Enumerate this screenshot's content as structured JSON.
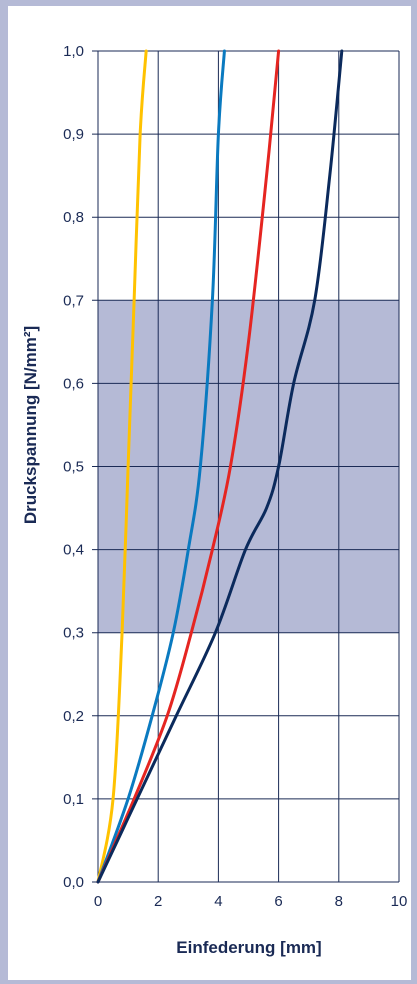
{
  "chart_data": {
    "type": "line",
    "xlabel": "Einfederung [mm]",
    "ylabel": "Druckspannung [N/mm²]",
    "xlim": [
      0,
      10
    ],
    "ylim": [
      0,
      1.0
    ],
    "xticks": [
      "0",
      "2",
      "4",
      "6",
      "8",
      "10"
    ],
    "yticks": [
      "0,0",
      "0,1",
      "0,2",
      "0,3",
      "0,4",
      "0,5",
      "0,6",
      "0,7",
      "0,8",
      "0,9",
      "1,0"
    ],
    "grid": true,
    "shaded_band": {
      "ymin": 0.3,
      "ymax": 0.7,
      "color": "#b5bad6"
    },
    "series": [
      {
        "color": "#ffc200",
        "x": [
          0,
          0.5,
          0.8,
          1.0,
          1.2,
          1.4,
          1.6
        ],
        "y": [
          0,
          0.1,
          0.3,
          0.5,
          0.7,
          0.9,
          1.0
        ]
      },
      {
        "color": "#0a7ac0",
        "x": [
          0,
          1.0,
          1.8,
          2.5,
          3.0,
          3.4,
          3.8,
          4.0,
          4.2
        ],
        "y": [
          0,
          0.1,
          0.2,
          0.3,
          0.4,
          0.5,
          0.7,
          0.9,
          1.0
        ]
      },
      {
        "color": "#e52521",
        "x": [
          0,
          1.2,
          2.3,
          3.1,
          3.8,
          4.4,
          5.0,
          5.6,
          6.0
        ],
        "y": [
          0,
          0.1,
          0.2,
          0.3,
          0.4,
          0.5,
          0.65,
          0.85,
          1.0
        ]
      },
      {
        "color": "#0b2a5c",
        "x": [
          0,
          1.3,
          2.6,
          3.9,
          4.9,
          5.6,
          6.0,
          6.5,
          7.2,
          7.7,
          8.1
        ],
        "y": [
          0,
          0.1,
          0.2,
          0.3,
          0.4,
          0.45,
          0.5,
          0.6,
          0.7,
          0.85,
          1.0
        ]
      }
    ]
  }
}
